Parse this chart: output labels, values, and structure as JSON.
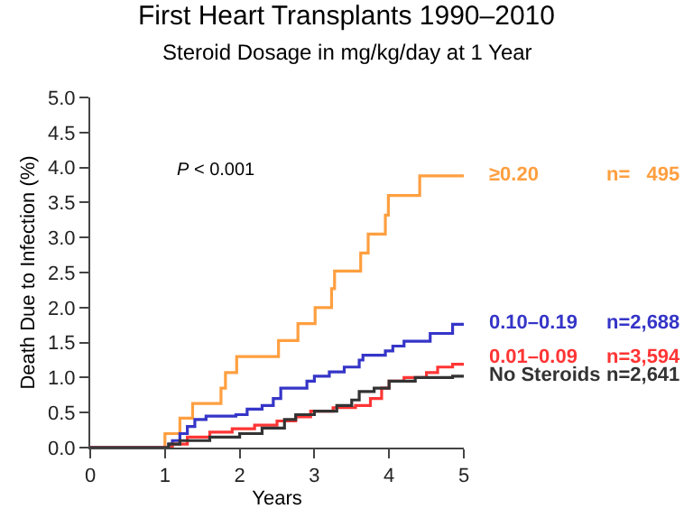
{
  "chart_data": {
    "type": "step",
    "title": "First Heart Transplants 1990–2010",
    "subtitle": "Steroid Dosage in mg/kg/day at 1 Year",
    "xlabel": "Years",
    "ylabel": "Death Due to Infection (%)",
    "xlim": [
      0,
      5
    ],
    "xticks": [
      0,
      1,
      2,
      3,
      4,
      5
    ],
    "ylim": [
      0,
      5
    ],
    "yticks": [
      {
        "value": 0,
        "label": "0.0"
      },
      {
        "value": 0.5,
        "label": "0.5"
      },
      {
        "value": 1,
        "label": "1.0"
      },
      {
        "value": 1.5,
        "label": "1.5"
      },
      {
        "value": 2,
        "label": "2.0"
      },
      {
        "value": 2.5,
        "label": "2.5"
      },
      {
        "value": 3,
        "label": "3.0"
      },
      {
        "value": 3.5,
        "label": "3.5"
      },
      {
        "value": 4,
        "label": "4.0"
      },
      {
        "value": 4.5,
        "label": "4.5"
      },
      {
        "value": 5,
        "label": "5.0"
      }
    ],
    "legend": false,
    "series": [
      {
        "name": "≥0.20",
        "color": "#ff9f40",
        "x": [
          0,
          1.0,
          1.2,
          1.37,
          1.75,
          1.81,
          1.96,
          2.52,
          2.78,
          3.01,
          3.23,
          3.27,
          3.62,
          3.72,
          3.95,
          3.99,
          4.41,
          5.0
        ],
        "values": [
          0,
          0.2,
          0.42,
          0.63,
          0.85,
          1.07,
          1.3,
          1.53,
          1.77,
          2.0,
          2.27,
          2.52,
          2.78,
          3.05,
          3.32,
          3.6,
          3.88,
          3.88
        ]
      },
      {
        "name": "0.10–0.19",
        "color": "#3535c8",
        "x": [
          0,
          1.05,
          1.1,
          1.2,
          1.3,
          1.4,
          1.55,
          1.95,
          2.1,
          2.3,
          2.45,
          2.55,
          2.9,
          3.0,
          3.2,
          3.4,
          3.6,
          3.65,
          3.95,
          4.05,
          4.2,
          4.55,
          4.85,
          5.0
        ],
        "values": [
          0,
          0.05,
          0.1,
          0.2,
          0.3,
          0.4,
          0.45,
          0.47,
          0.55,
          0.6,
          0.7,
          0.85,
          0.95,
          1.02,
          1.08,
          1.15,
          1.25,
          1.32,
          1.38,
          1.45,
          1.52,
          1.63,
          1.76,
          1.78
        ]
      },
      {
        "name": "0.01–0.09",
        "color": "#ff3535",
        "x": [
          0,
          1.1,
          1.3,
          1.6,
          1.9,
          2.2,
          2.5,
          2.75,
          2.95,
          3.25,
          3.55,
          3.75,
          3.9,
          4.0,
          4.2,
          4.5,
          4.65,
          4.85,
          5.0
        ],
        "values": [
          0,
          0.05,
          0.15,
          0.22,
          0.27,
          0.32,
          0.38,
          0.44,
          0.52,
          0.57,
          0.6,
          0.7,
          0.85,
          0.95,
          1.0,
          1.07,
          1.15,
          1.19,
          1.19
        ]
      },
      {
        "name": "No Steroids",
        "color": "#333333",
        "x": [
          0,
          1.05,
          1.2,
          1.6,
          2.0,
          2.3,
          2.6,
          2.75,
          3.0,
          3.3,
          3.5,
          3.6,
          3.8,
          4.0,
          4.35,
          4.85,
          5.0
        ],
        "values": [
          0,
          0.05,
          0.1,
          0.15,
          0.2,
          0.28,
          0.4,
          0.47,
          0.52,
          0.6,
          0.68,
          0.8,
          0.85,
          0.95,
          1.0,
          1.02,
          1.02
        ]
      }
    ],
    "annotations": [
      "P < 0.001",
      "n=   495",
      "n=2,688",
      "n=3,594",
      "n=2,641"
    ]
  }
}
